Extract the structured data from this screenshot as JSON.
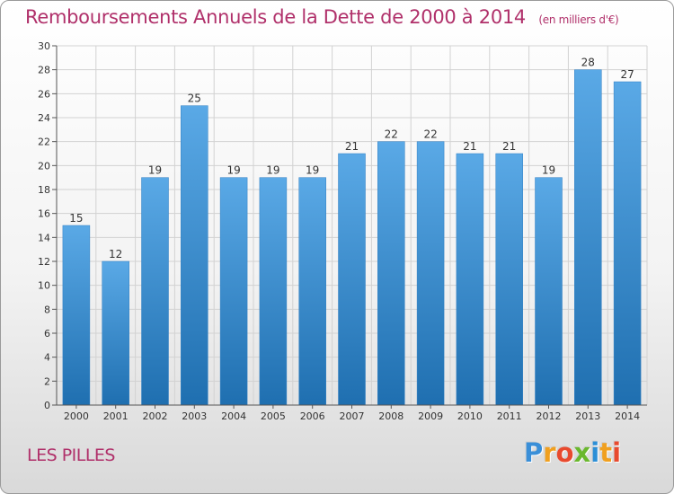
{
  "chart_data": {
    "type": "bar",
    "title": "Remboursements Annuels de la Dette de 2000 à 2014",
    "unit_label": "(en milliers d'€)",
    "categories": [
      "2000",
      "2001",
      "2002",
      "2003",
      "2004",
      "2005",
      "2006",
      "2007",
      "2008",
      "2009",
      "2010",
      "2011",
      "2012",
      "2013",
      "2014"
    ],
    "values": [
      15,
      12,
      19,
      25,
      19,
      19,
      19,
      21,
      22,
      22,
      21,
      21,
      19,
      28,
      27
    ],
    "ylim": [
      0,
      30
    ],
    "yticks": [
      0,
      2,
      4,
      6,
      8,
      10,
      12,
      14,
      16,
      18,
      20,
      22,
      24,
      26,
      28,
      30
    ],
    "xlabel": "",
    "ylabel": "",
    "grid": true,
    "bar_color_top": "#5aa9e6",
    "bar_color_bottom": "#1f6fb0"
  },
  "footer": {
    "commune": "LES PILLES"
  },
  "logo": {
    "letters": [
      "P",
      "r",
      "o",
      "x",
      "i",
      "t",
      "i"
    ],
    "colors": [
      "#3a8fd8",
      "#f0a020",
      "#e84a2e",
      "#6ab82d",
      "#2c8fd6",
      "#f0a020",
      "#e84a2e"
    ]
  }
}
